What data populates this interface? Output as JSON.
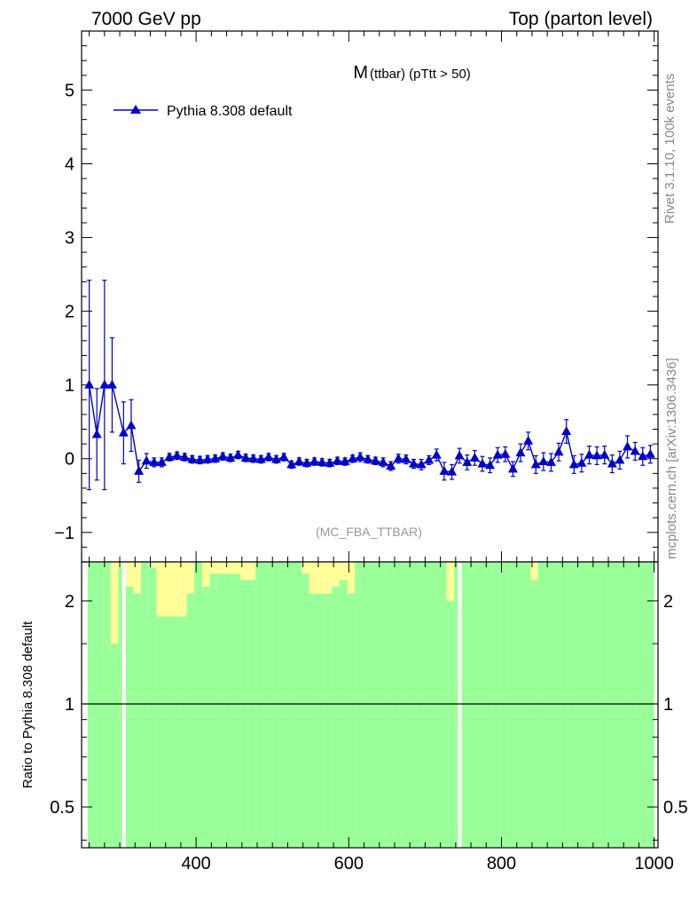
{
  "header": {
    "left": "7000 GeV pp",
    "right": "Top (parton level)"
  },
  "side_labels": {
    "rivet": "Rivet 3.1.10,  100k events",
    "mcplots": "mcplots.cern.ch [arXiv:1306.3436]"
  },
  "chart_data": [
    {
      "type": "line",
      "title_main": "M",
      "title_sub": "(ttbar) (pTtt > 50)",
      "watermark": "(MC_FBA_TTBAR)",
      "xlim": [
        250,
        1005
      ],
      "ylim": [
        -1.4,
        5.8
      ],
      "y_ticks": [
        -1,
        0,
        1,
        2,
        3,
        4,
        5
      ],
      "y_tick_labels": [
        "−1",
        "0",
        "1",
        "2",
        "3",
        "4",
        "5"
      ],
      "legend": {
        "placement": "top-left"
      },
      "colors": {
        "series": "#0000cc"
      },
      "series": [
        {
          "name": "Pythia 8.308 default",
          "marker": "triangle",
          "x": [
            260,
            270,
            280,
            290,
            305,
            315,
            325,
            335,
            345,
            355,
            365,
            375,
            385,
            395,
            405,
            415,
            425,
            435,
            445,
            455,
            465,
            475,
            485,
            495,
            505,
            515,
            525,
            535,
            545,
            555,
            565,
            575,
            585,
            595,
            605,
            615,
            625,
            635,
            645,
            655,
            665,
            675,
            685,
            695,
            705,
            715,
            725,
            735,
            745,
            755,
            765,
            775,
            785,
            795,
            805,
            815,
            825,
            835,
            845,
            855,
            865,
            875,
            885,
            895,
            905,
            915,
            925,
            935,
            945,
            955,
            965,
            975,
            985,
            995
          ],
          "y": [
            1.0,
            0.33,
            1.0,
            1.0,
            0.35,
            0.45,
            -0.17,
            -0.03,
            -0.05,
            -0.05,
            0.02,
            0.04,
            0.02,
            -0.01,
            -0.02,
            -0.01,
            0.0,
            0.03,
            0.01,
            0.05,
            0.01,
            0.0,
            -0.01,
            0.02,
            -0.01,
            0.02,
            -0.08,
            -0.04,
            -0.06,
            -0.04,
            -0.05,
            -0.06,
            -0.03,
            -0.04,
            0.0,
            0.02,
            -0.01,
            -0.03,
            -0.05,
            -0.1,
            0.0,
            -0.01,
            -0.07,
            -0.08,
            -0.02,
            0.05,
            -0.17,
            -0.18,
            0.04,
            -0.05,
            0.01,
            -0.07,
            -0.09,
            0.05,
            0.06,
            -0.14,
            0.08,
            0.24,
            -0.08,
            -0.04,
            -0.05,
            0.09,
            0.37,
            -0.08,
            -0.06,
            0.05,
            0.04,
            0.05,
            -0.07,
            -0.02,
            0.16,
            0.1,
            0.03,
            0.06
          ],
          "yerr": [
            1.42,
            0.62,
            1.42,
            0.64,
            0.42,
            0.35,
            0.15,
            0.1,
            0.06,
            0.06,
            0.05,
            0.05,
            0.05,
            0.05,
            0.05,
            0.05,
            0.05,
            0.05,
            0.05,
            0.05,
            0.05,
            0.05,
            0.05,
            0.05,
            0.05,
            0.05,
            0.05,
            0.05,
            0.05,
            0.05,
            0.05,
            0.05,
            0.05,
            0.05,
            0.05,
            0.06,
            0.05,
            0.05,
            0.06,
            0.06,
            0.06,
            0.06,
            0.06,
            0.07,
            0.06,
            0.08,
            0.12,
            0.1,
            0.1,
            0.1,
            0.1,
            0.1,
            0.1,
            0.1,
            0.1,
            0.1,
            0.12,
            0.12,
            0.12,
            0.12,
            0.12,
            0.12,
            0.16,
            0.12,
            0.12,
            0.12,
            0.12,
            0.12,
            0.12,
            0.12,
            0.15,
            0.12,
            0.12,
            0.12
          ]
        }
      ]
    },
    {
      "type": "area",
      "ylabel": "Ratio to Pythia 8.308 default",
      "xlim": [
        250,
        1005
      ],
      "y_scale": "log",
      "ylim": [
        0.38,
        2.6
      ],
      "y_ticks": [
        0.5,
        1,
        2
      ],
      "y_tick_labels": [
        "0.5",
        "1",
        "2"
      ],
      "x_ticks": [
        400,
        600,
        800,
        1000
      ],
      "x_tick_labels": [
        "400",
        "600",
        "800",
        "1000"
      ],
      "colors": {
        "band_1sigma": "#99ff99",
        "band_2sigma": "#ffff99",
        "reference": "#000000"
      },
      "reference_line": 1,
      "bands": {
        "x_lo": [
          258,
          268,
          278,
          288,
          298,
          308,
          318,
          328,
          338,
          348,
          358,
          368,
          378,
          388,
          398,
          408,
          418,
          428,
          438,
          448,
          458,
          468,
          478,
          488,
          498,
          508,
          518,
          528,
          538,
          548,
          558,
          568,
          578,
          588,
          598,
          608,
          618,
          628,
          638,
          648,
          658,
          668,
          678,
          688,
          698,
          708,
          718,
          728,
          738,
          748,
          758,
          768,
          778,
          788,
          798,
          808,
          818,
          828,
          838,
          848,
          858,
          868,
          878,
          888,
          898,
          908,
          918,
          928,
          938,
          948,
          958,
          968,
          978,
          988
        ],
        "x_hi": [
          268,
          278,
          288,
          298,
          303,
          318,
          328,
          338,
          348,
          358,
          368,
          378,
          388,
          398,
          408,
          418,
          428,
          438,
          448,
          458,
          468,
          478,
          488,
          498,
          508,
          518,
          528,
          538,
          548,
          558,
          568,
          578,
          588,
          598,
          608,
          618,
          628,
          638,
          648,
          658,
          668,
          678,
          688,
          698,
          708,
          718,
          728,
          738,
          743,
          758,
          768,
          778,
          788,
          798,
          808,
          818,
          828,
          838,
          848,
          858,
          868,
          878,
          888,
          898,
          908,
          918,
          928,
          938,
          948,
          958,
          968,
          978,
          988,
          1000
        ],
        "green_top": [
          2.6,
          2.6,
          2.6,
          1.5,
          2.5,
          2.2,
          2.1,
          2.6,
          2.5,
          1.8,
          1.8,
          1.8,
          1.8,
          2.1,
          2.6,
          2.2,
          2.4,
          2.4,
          2.4,
          2.4,
          2.3,
          2.3,
          2.6,
          2.6,
          2.6,
          2.6,
          2.6,
          2.6,
          2.4,
          2.1,
          2.1,
          2.1,
          2.2,
          2.3,
          2.1,
          2.6,
          2.6,
          2.6,
          2.6,
          2.6,
          2.6,
          2.6,
          2.6,
          2.6,
          2.6,
          2.6,
          2.6,
          2.0,
          2.6,
          2.6,
          2.6,
          2.6,
          2.6,
          2.6,
          2.6,
          2.6,
          2.6,
          2.6,
          2.3,
          2.6,
          2.6,
          2.6,
          2.6,
          2.6,
          2.6,
          2.6,
          2.6,
          2.6,
          2.6,
          2.6,
          2.6,
          2.6,
          2.6,
          2.6
        ],
        "green_bottom": [
          0.38,
          0.38,
          0.38,
          0.38,
          0.38,
          0.38,
          0.38,
          0.38,
          0.38,
          0.38,
          0.38,
          0.38,
          0.38,
          0.38,
          0.38,
          0.38,
          0.38,
          0.38,
          0.38,
          0.38,
          0.38,
          0.38,
          0.38,
          0.38,
          0.38,
          0.38,
          0.38,
          0.38,
          0.38,
          0.38,
          0.38,
          0.38,
          0.38,
          0.38,
          0.38,
          0.38,
          0.38,
          0.38,
          0.38,
          0.38,
          0.38,
          0.38,
          0.38,
          0.38,
          0.38,
          0.38,
          0.38,
          0.38,
          0.38,
          0.38,
          0.38,
          0.38,
          0.38,
          0.38,
          0.38,
          0.38,
          0.38,
          0.38,
          0.38,
          0.38,
          0.38,
          0.38,
          0.38,
          0.38,
          0.38,
          0.38,
          0.38,
          0.38,
          0.38,
          0.38,
          0.38,
          0.38,
          0.38,
          0.38
        ],
        "yellow_top": [
          2.6,
          2.6,
          2.6,
          2.6,
          2.6,
          2.6,
          2.6,
          2.6,
          2.6,
          2.6,
          2.6,
          2.6,
          2.6,
          2.6,
          2.6,
          2.6,
          2.6,
          2.6,
          2.6,
          2.6,
          2.6,
          2.6,
          2.6,
          2.6,
          2.6,
          2.6,
          2.6,
          2.6,
          2.6,
          2.6,
          2.6,
          2.6,
          2.6,
          2.6,
          2.6,
          2.6,
          2.6,
          2.6,
          2.6,
          2.6,
          2.6,
          2.6,
          2.6,
          2.6,
          2.6,
          2.6,
          2.6,
          2.6,
          2.6,
          2.6,
          2.6,
          2.6,
          2.6,
          2.6,
          2.6,
          2.6,
          2.6,
          2.6,
          2.6,
          2.6,
          2.6,
          2.6,
          2.6,
          2.6,
          2.6,
          2.6,
          2.6,
          2.6,
          2.6,
          2.6,
          2.6,
          2.6,
          2.6,
          2.6
        ],
        "yellow_bottom": [
          0.38,
          0.38,
          0.38,
          0.38,
          0.38,
          0.38,
          0.38,
          0.38,
          0.38,
          0.38,
          0.38,
          0.38,
          0.38,
          0.38,
          0.38,
          0.38,
          0.38,
          0.38,
          0.38,
          0.38,
          0.38,
          0.38,
          0.38,
          0.38,
          0.38,
          0.38,
          0.38,
          0.38,
          0.38,
          0.38,
          0.38,
          0.38,
          0.38,
          0.38,
          0.38,
          0.38,
          0.38,
          0.38,
          0.38,
          0.38,
          0.38,
          0.38,
          0.38,
          0.38,
          0.38,
          0.38,
          0.38,
          0.38,
          0.38,
          0.38,
          0.38,
          0.38,
          0.38,
          0.38,
          0.38,
          0.38,
          0.38,
          0.38,
          0.38,
          0.38,
          0.38,
          0.38,
          0.38,
          0.38,
          0.38,
          0.38,
          0.38,
          0.38,
          0.38,
          0.38,
          0.38,
          0.38,
          0.38,
          0.38
        ]
      },
      "gaps": [
        [
          303,
          308
        ],
        [
          743,
          748
        ]
      ]
    }
  ]
}
